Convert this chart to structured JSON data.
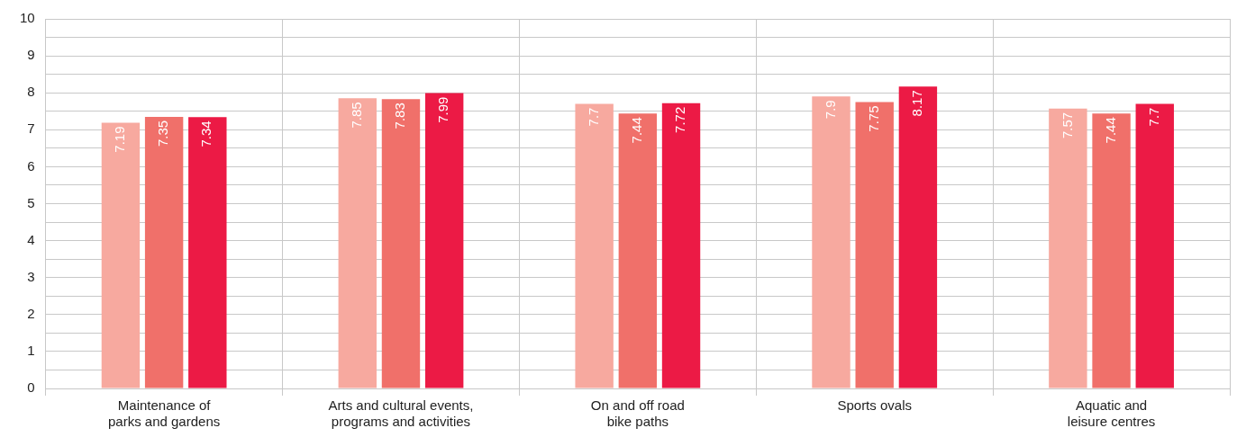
{
  "chart_data": {
    "type": "bar",
    "categories": [
      "Maintenance of parks and gardens",
      "Arts and cultural events, programs and activities",
      "On and off road bike paths",
      "Sports ovals",
      "Aquatic and leisure centres"
    ],
    "series": [
      {
        "color": "#f7a99f",
        "values": [
          7.19,
          7.85,
          7.7,
          7.9,
          7.57
        ]
      },
      {
        "color": "#f0706a",
        "values": [
          7.35,
          7.83,
          7.44,
          7.75,
          7.44
        ]
      },
      {
        "color": "#ec1a45",
        "values": [
          7.34,
          7.99,
          7.72,
          8.17,
          7.7
        ]
      }
    ],
    "ylim": [
      0,
      10
    ],
    "yticks": [
      0,
      {
        "value": 0.5,
        "label": null
      },
      1,
      {
        "value": 1.5,
        "label": null
      },
      2,
      {
        "value": 2.5,
        "label": null
      },
      3,
      {
        "value": 3.5,
        "label": null
      },
      4,
      {
        "value": 4.5,
        "label": null
      },
      5,
      {
        "value": 5.5,
        "label": null
      },
      6,
      {
        "value": 6.5,
        "label": null
      },
      7,
      {
        "value": 7.5,
        "label": null
      },
      8,
      {
        "value": 8.5,
        "label": null
      },
      9,
      {
        "value": 9.5,
        "label": null
      },
      10
    ],
    "grid": true,
    "legend": false,
    "data_labels": true
  }
}
